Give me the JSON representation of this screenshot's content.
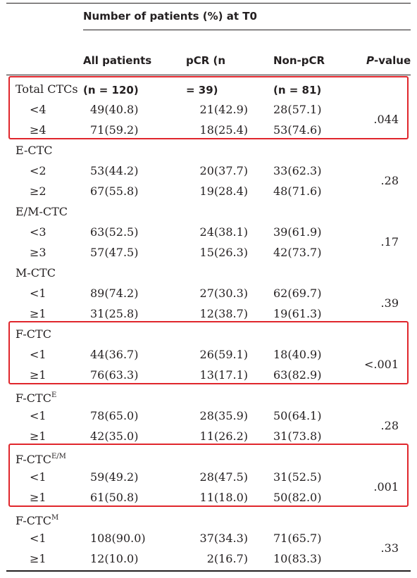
{
  "header": {
    "span_title": "Number of patients (%) at T0",
    "col_all_text": "All patients",
    "col_all_n": "(n = 120)",
    "col_pcr_text": "pCR (n",
    "col_pcr_n": "= 39)",
    "col_nonpcr_text": "Non-pCR",
    "col_nonpcr_n": "(n = 81)",
    "col_p_italic": "P",
    "col_p_rest": "-value"
  },
  "rows": [
    {
      "group": "Total CTCs",
      "sup": "",
      "levels": [
        {
          "level": "<4",
          "all": "49(40.8)",
          "pcr": "21(42.9)",
          "nonpcr": "28(57.1)",
          "p": ".044"
        },
        {
          "level": "≥4",
          "all": "71(59.2)",
          "pcr": "18(25.4)",
          "nonpcr": "53(74.6)",
          "p": ""
        }
      ]
    },
    {
      "group": "E-CTC",
      "sup": "",
      "levels": [
        {
          "level": "<2",
          "all": "53(44.2)",
          "pcr": "20(37.7)",
          "nonpcr": "33(62.3)",
          "p": ".28"
        },
        {
          "level": "≥2",
          "all": "67(55.8)",
          "pcr": "19(28.4)",
          "nonpcr": "48(71.6)",
          "p": ""
        }
      ]
    },
    {
      "group": "E/M-CTC",
      "sup": "",
      "levels": [
        {
          "level": "<3",
          "all": "63(52.5)",
          "pcr": "24(38.1)",
          "nonpcr": "39(61.9)",
          "p": ".17"
        },
        {
          "level": "≥3",
          "all": "57(47.5)",
          "pcr": "15(26.3)",
          "nonpcr": "42(73.7)",
          "p": ""
        }
      ]
    },
    {
      "group": "M-CTC",
      "sup": "",
      "levels": [
        {
          "level": "<1",
          "all": "89(74.2)",
          "pcr": "27(30.3)",
          "nonpcr": "62(69.7)",
          "p": ".39"
        },
        {
          "level": "≥1",
          "all": "31(25.8)",
          "pcr": "12(38.7)",
          "nonpcr": "19(61.3)",
          "p": ""
        }
      ]
    },
    {
      "group": "F-CTC",
      "sup": "",
      "levels": [
        {
          "level": "<1",
          "all": "44(36.7)",
          "pcr": "26(59.1)",
          "nonpcr": "18(40.9)",
          "p": "<.001"
        },
        {
          "level": "≥1",
          "all": "76(63.3)",
          "pcr": "13(17.1)",
          "nonpcr": "63(82.9)",
          "p": ""
        }
      ]
    },
    {
      "group": "F-CTC",
      "sup": "E",
      "levels": [
        {
          "level": "<1",
          "all": "78(65.0)",
          "pcr": "28(35.9)",
          "nonpcr": "50(64.1)",
          "p": ".28"
        },
        {
          "level": "≥1",
          "all": "42(35.0)",
          "pcr": "11(26.2)",
          "nonpcr": "31(73.8)",
          "p": ""
        }
      ]
    },
    {
      "group": "F-CTC",
      "sup": "E/M",
      "levels": [
        {
          "level": "<1",
          "all": "59(49.2)",
          "pcr": "28(47.5)",
          "nonpcr": "31(52.5)",
          "p": ".001"
        },
        {
          "level": "≥1",
          "all": "61(50.8)",
          "pcr": "11(18.0)",
          "nonpcr": "50(82.0)",
          "p": ""
        }
      ]
    },
    {
      "group": "F-CTC",
      "sup": "M",
      "levels": [
        {
          "level": "<1",
          "all": "108(90.0)",
          "pcr": "37(34.3)",
          "nonpcr": "71(65.7)",
          "p": ".33"
        },
        {
          "level": "≥1",
          "all": "12(10.0)",
          "pcr": "2(16.7)",
          "nonpcr": "10(83.3)",
          "p": ""
        }
      ]
    }
  ],
  "highlight_color": "#e0262c",
  "highlighted_groups": [
    0,
    4,
    6
  ]
}
